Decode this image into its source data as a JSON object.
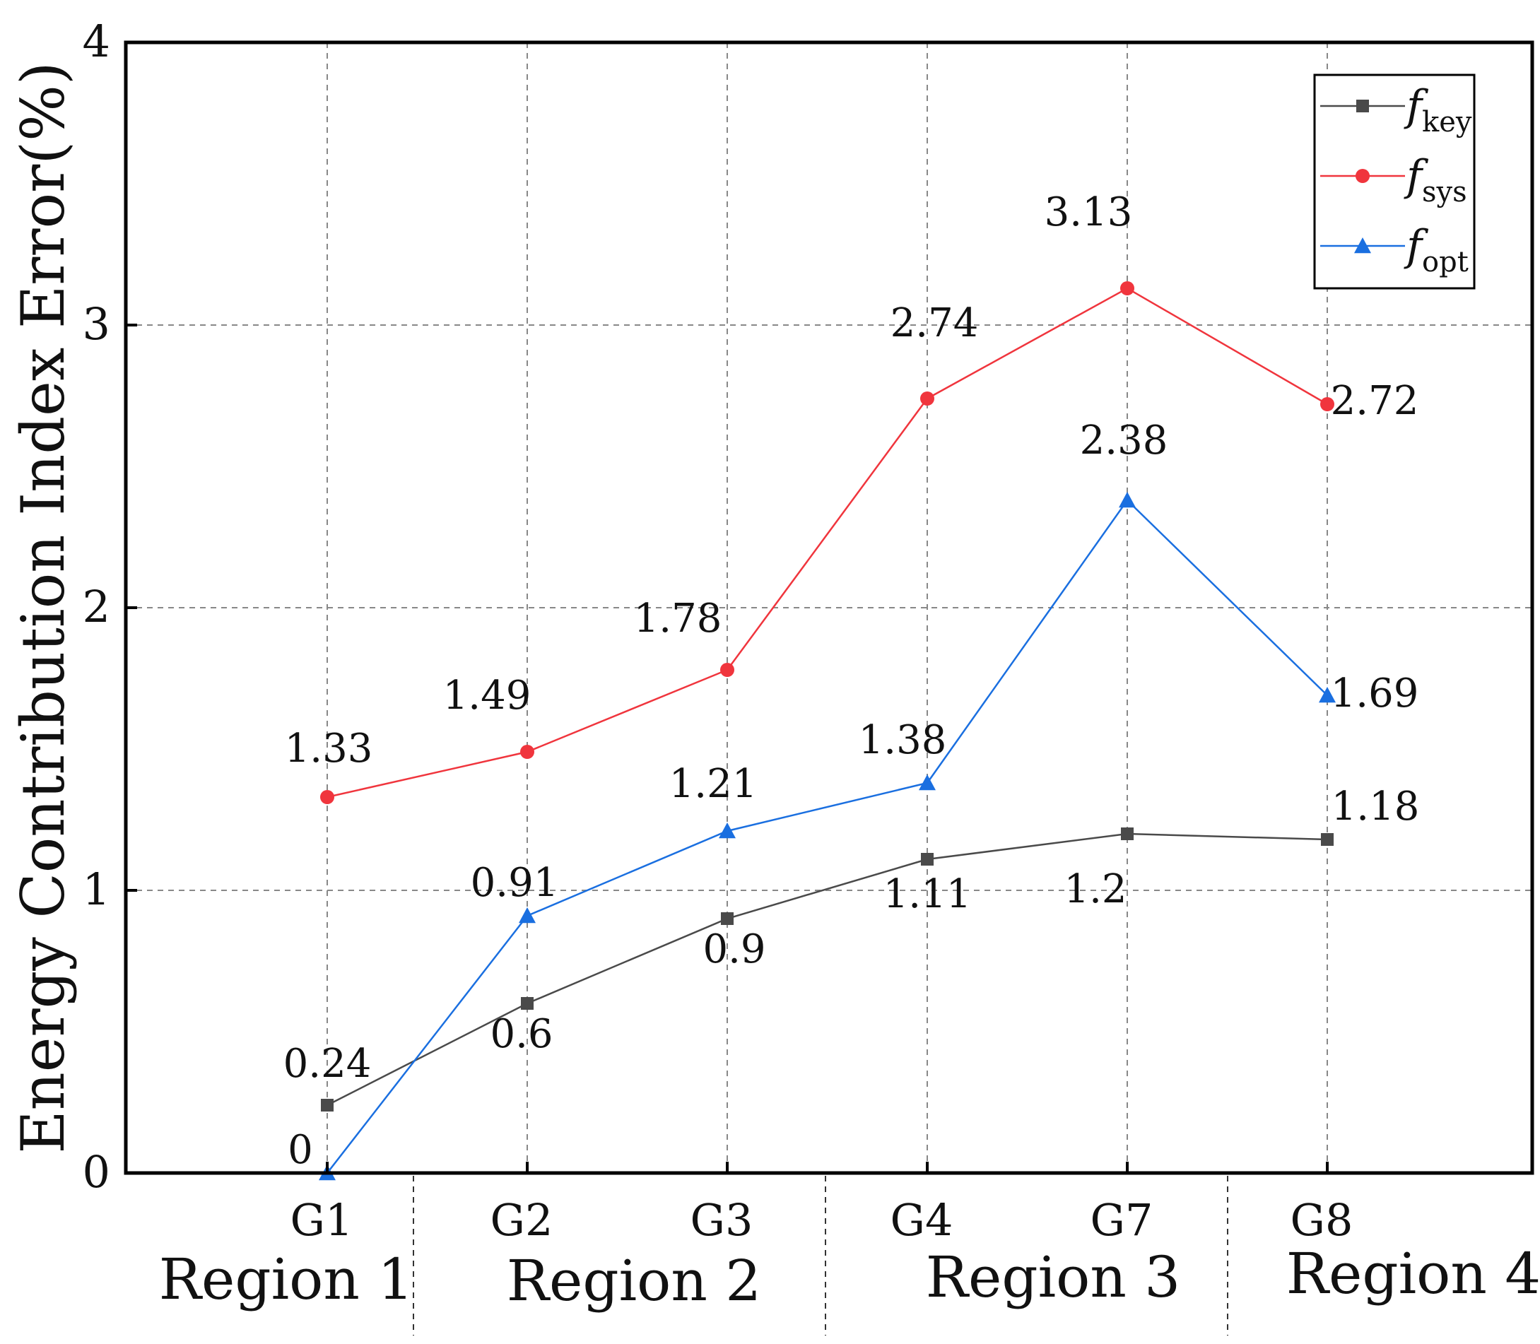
{
  "chart_data": {
    "type": "line",
    "title": "",
    "xlabel": "",
    "ylabel": "Energy Contribution Index Error(%)",
    "categories": [
      "G1",
      "G2",
      "G3",
      "G4",
      "G7",
      "G8"
    ],
    "regions": [
      "Region 1",
      "Region 2",
      "Region 3",
      "Region 4"
    ],
    "ylim": [
      0,
      4
    ],
    "yticks": [
      "0",
      "1",
      "2",
      "3",
      "4"
    ],
    "grid": true,
    "legend_position": "top-right",
    "series": [
      {
        "name": "f_key",
        "symbol": "f",
        "subscript": "key",
        "color": "#4a4a4a",
        "marker": "square",
        "values": [
          0.24,
          0.6,
          0.9,
          1.11,
          1.2,
          1.18
        ],
        "labels": [
          "0.24",
          "0.6",
          "0.9",
          "1.11",
          "1.2",
          "1.18"
        ]
      },
      {
        "name": "f_sys",
        "symbol": "f",
        "subscript": "sys",
        "color": "#f0353d",
        "marker": "circle",
        "values": [
          1.33,
          1.49,
          1.78,
          2.74,
          3.13,
          2.72
        ],
        "labels": [
          "1.33",
          "1.49",
          "1.78",
          "2.74",
          "3.13",
          "2.72"
        ]
      },
      {
        "name": "f_opt",
        "symbol": "f",
        "subscript": "opt",
        "color": "#1a6fe0",
        "marker": "triangle",
        "values": [
          0,
          0.91,
          1.21,
          1.38,
          2.38,
          1.69
        ],
        "labels": [
          "0",
          "0.91",
          "1.21",
          "1.38",
          "2.38",
          "1.69"
        ]
      }
    ]
  }
}
